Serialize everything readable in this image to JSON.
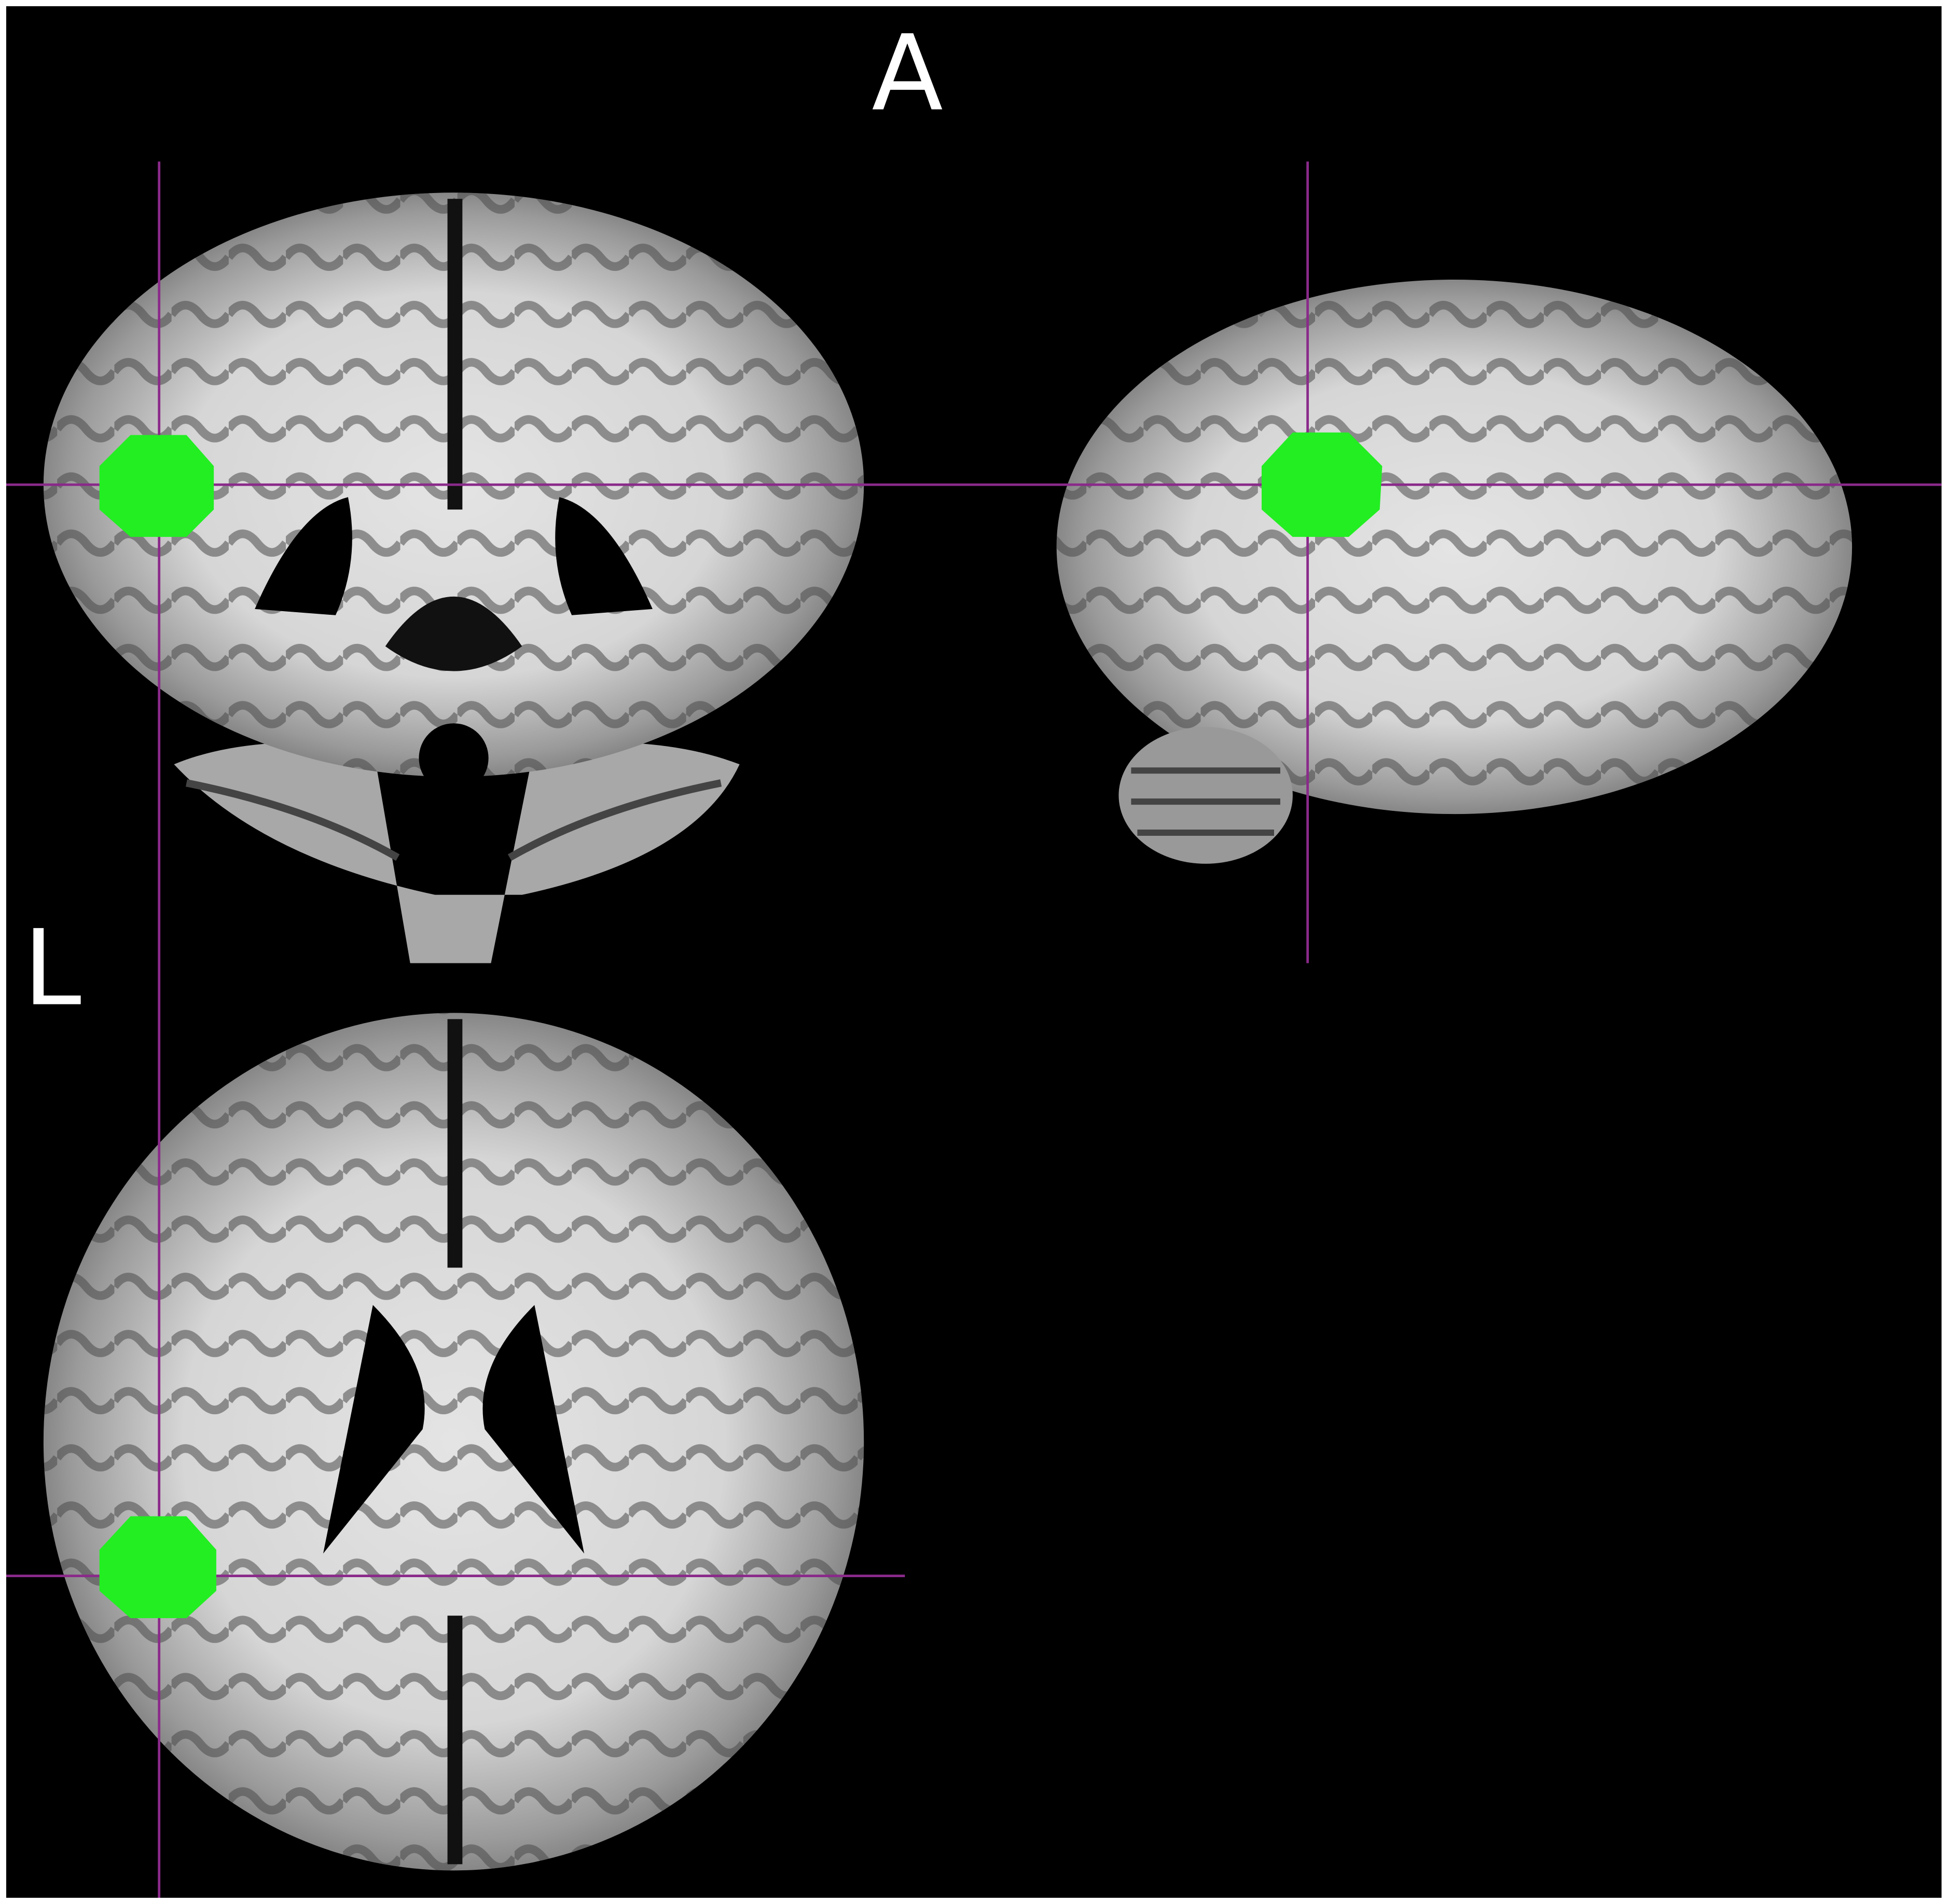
{
  "labels": {
    "top": "A",
    "left": "L"
  }
}
